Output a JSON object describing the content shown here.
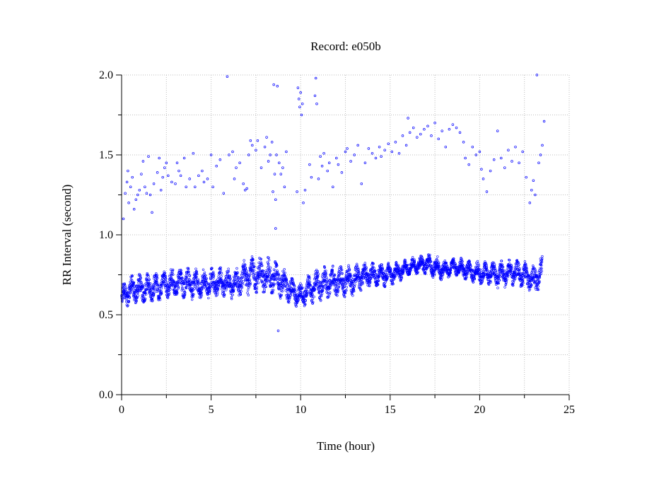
{
  "chart_data": {
    "type": "scatter",
    "title": "Record:  e050b",
    "xlabel": "Time (hour)",
    "ylabel": "RR Interval (second)",
    "xlim": [
      0,
      25
    ],
    "ylim": [
      0.0,
      2.0
    ],
    "x_ticks": [
      "0",
      "5",
      "10",
      "15",
      "20",
      "25"
    ],
    "y_ticks": [
      "0.0",
      "0.5",
      "1.0",
      "1.5",
      "2.0"
    ],
    "grid": true,
    "marker_color": "#0000ff",
    "baseline_band": [
      [
        0.0,
        0.6,
        0.08
      ],
      [
        0.5,
        0.66,
        0.08
      ],
      [
        1.0,
        0.66,
        0.09
      ],
      [
        1.5,
        0.67,
        0.09
      ],
      [
        2.0,
        0.67,
        0.09
      ],
      [
        2.5,
        0.69,
        0.09
      ],
      [
        3.0,
        0.7,
        0.09
      ],
      [
        3.5,
        0.7,
        0.09
      ],
      [
        4.0,
        0.69,
        0.09
      ],
      [
        4.5,
        0.69,
        0.09
      ],
      [
        5.0,
        0.7,
        0.09
      ],
      [
        5.5,
        0.7,
        0.09
      ],
      [
        6.0,
        0.69,
        0.09
      ],
      [
        6.5,
        0.7,
        0.09
      ],
      [
        7.0,
        0.74,
        0.11
      ],
      [
        7.5,
        0.75,
        0.11
      ],
      [
        8.0,
        0.74,
        0.11
      ],
      [
        8.5,
        0.74,
        0.11
      ],
      [
        9.0,
        0.7,
        0.1
      ],
      [
        9.5,
        0.65,
        0.08
      ],
      [
        10.0,
        0.62,
        0.07
      ],
      [
        10.5,
        0.66,
        0.09
      ],
      [
        11.0,
        0.69,
        0.1
      ],
      [
        11.5,
        0.7,
        0.1
      ],
      [
        12.0,
        0.71,
        0.09
      ],
      [
        12.5,
        0.71,
        0.09
      ],
      [
        13.0,
        0.72,
        0.09
      ],
      [
        13.5,
        0.74,
        0.08
      ],
      [
        14.0,
        0.75,
        0.07
      ],
      [
        14.5,
        0.75,
        0.07
      ],
      [
        15.0,
        0.75,
        0.07
      ],
      [
        15.5,
        0.77,
        0.06
      ],
      [
        16.0,
        0.8,
        0.05
      ],
      [
        16.5,
        0.81,
        0.05
      ],
      [
        17.0,
        0.82,
        0.06
      ],
      [
        17.5,
        0.8,
        0.07
      ],
      [
        18.0,
        0.78,
        0.06
      ],
      [
        18.5,
        0.8,
        0.05
      ],
      [
        19.0,
        0.79,
        0.06
      ],
      [
        19.5,
        0.77,
        0.06
      ],
      [
        20.0,
        0.76,
        0.07
      ],
      [
        20.5,
        0.76,
        0.07
      ],
      [
        21.0,
        0.75,
        0.08
      ],
      [
        21.5,
        0.76,
        0.08
      ],
      [
        22.0,
        0.76,
        0.08
      ],
      [
        22.5,
        0.75,
        0.08
      ],
      [
        23.0,
        0.71,
        0.09
      ],
      [
        23.5,
        0.77,
        0.1
      ]
    ],
    "outliers": [
      [
        0.1,
        1.1
      ],
      [
        0.2,
        1.26
      ],
      [
        0.3,
        1.33
      ],
      [
        0.35,
        1.4
      ],
      [
        0.4,
        1.2
      ],
      [
        0.5,
        1.3
      ],
      [
        0.6,
        1.36
      ],
      [
        0.7,
        1.16
      ],
      [
        0.8,
        1.22
      ],
      [
        0.9,
        1.25
      ],
      [
        1.0,
        1.28
      ],
      [
        1.1,
        1.38
      ],
      [
        1.2,
        1.46
      ],
      [
        1.3,
        1.3
      ],
      [
        1.4,
        1.26
      ],
      [
        1.5,
        1.49
      ],
      [
        1.6,
        1.25
      ],
      [
        1.7,
        1.14
      ],
      [
        1.8,
        1.32
      ],
      [
        2.0,
        1.39
      ],
      [
        2.1,
        1.48
      ],
      [
        2.2,
        1.28
      ],
      [
        2.3,
        1.36
      ],
      [
        2.4,
        1.42
      ],
      [
        2.5,
        1.45
      ],
      [
        2.6,
        1.37
      ],
      [
        2.8,
        1.33
      ],
      [
        3.0,
        1.32
      ],
      [
        3.1,
        1.45
      ],
      [
        3.2,
        1.4
      ],
      [
        3.3,
        1.37
      ],
      [
        3.5,
        1.48
      ],
      [
        3.6,
        1.3
      ],
      [
        3.8,
        1.35
      ],
      [
        4.0,
        1.51
      ],
      [
        4.1,
        1.3
      ],
      [
        4.3,
        1.37
      ],
      [
        4.5,
        1.4
      ],
      [
        4.6,
        1.33
      ],
      [
        4.8,
        1.35
      ],
      [
        5.0,
        1.5
      ],
      [
        5.1,
        1.3
      ],
      [
        5.3,
        1.43
      ],
      [
        5.5,
        1.47
      ],
      [
        5.7,
        1.26
      ],
      [
        5.9,
        1.99
      ],
      [
        6.0,
        1.5
      ],
      [
        6.2,
        1.52
      ],
      [
        6.3,
        1.35
      ],
      [
        6.4,
        1.42
      ],
      [
        6.6,
        1.45
      ],
      [
        6.8,
        1.32
      ],
      [
        6.9,
        1.28
      ],
      [
        7.0,
        1.29
      ],
      [
        7.1,
        1.5
      ],
      [
        7.2,
        1.59
      ],
      [
        7.3,
        1.56
      ],
      [
        7.5,
        1.53
      ],
      [
        7.6,
        1.59
      ],
      [
        7.8,
        1.42
      ],
      [
        8.0,
        1.55
      ],
      [
        8.1,
        1.61
      ],
      [
        8.2,
        1.46
      ],
      [
        8.3,
        1.5
      ],
      [
        8.4,
        1.58
      ],
      [
        8.45,
        1.27
      ],
      [
        8.5,
        1.94
      ],
      [
        8.55,
        1.38
      ],
      [
        8.6,
        1.22
      ],
      [
        8.6,
        1.04
      ],
      [
        8.65,
        1.5
      ],
      [
        8.7,
        1.93
      ],
      [
        8.75,
        0.4
      ],
      [
        8.8,
        1.45
      ],
      [
        8.9,
        1.38
      ],
      [
        9.0,
        1.42
      ],
      [
        9.1,
        1.3
      ],
      [
        9.2,
        1.52
      ],
      [
        9.8,
        1.27
      ],
      [
        9.85,
        1.92
      ],
      [
        9.9,
        1.85
      ],
      [
        9.95,
        1.8
      ],
      [
        10.0,
        1.89
      ],
      [
        10.05,
        1.75
      ],
      [
        10.1,
        1.82
      ],
      [
        10.15,
        1.2
      ],
      [
        10.25,
        1.28
      ],
      [
        10.5,
        1.44
      ],
      [
        10.6,
        1.36
      ],
      [
        10.8,
        1.87
      ],
      [
        10.85,
        1.98
      ],
      [
        10.9,
        1.82
      ],
      [
        11.0,
        1.35
      ],
      [
        11.1,
        1.49
      ],
      [
        11.2,
        1.43
      ],
      [
        11.3,
        1.51
      ],
      [
        11.5,
        1.4
      ],
      [
        11.6,
        1.45
      ],
      [
        11.8,
        1.3
      ],
      [
        12.0,
        1.48
      ],
      [
        12.1,
        1.44
      ],
      [
        12.3,
        1.39
      ],
      [
        12.5,
        1.52
      ],
      [
        12.6,
        1.54
      ],
      [
        12.8,
        1.46
      ],
      [
        13.0,
        1.5
      ],
      [
        13.2,
        1.56
      ],
      [
        13.4,
        1.32
      ],
      [
        13.6,
        1.45
      ],
      [
        13.8,
        1.54
      ],
      [
        14.0,
        1.51
      ],
      [
        14.2,
        1.48
      ],
      [
        14.4,
        1.55
      ],
      [
        14.5,
        1.49
      ],
      [
        14.7,
        1.53
      ],
      [
        14.9,
        1.57
      ],
      [
        15.1,
        1.52
      ],
      [
        15.3,
        1.58
      ],
      [
        15.5,
        1.51
      ],
      [
        15.7,
        1.62
      ],
      [
        15.9,
        1.56
      ],
      [
        16.0,
        1.73
      ],
      [
        16.1,
        1.64
      ],
      [
        16.3,
        1.67
      ],
      [
        16.5,
        1.61
      ],
      [
        16.7,
        1.63
      ],
      [
        16.9,
        1.66
      ],
      [
        17.1,
        1.68
      ],
      [
        17.3,
        1.62
      ],
      [
        17.5,
        1.7
      ],
      [
        17.7,
        1.6
      ],
      [
        17.9,
        1.65
      ],
      [
        18.1,
        1.55
      ],
      [
        18.3,
        1.66
      ],
      [
        18.5,
        1.69
      ],
      [
        18.7,
        1.67
      ],
      [
        18.9,
        1.64
      ],
      [
        19.1,
        1.58
      ],
      [
        19.2,
        1.48
      ],
      [
        19.4,
        1.44
      ],
      [
        19.6,
        1.55
      ],
      [
        19.8,
        1.5
      ],
      [
        20.0,
        1.52
      ],
      [
        20.1,
        1.41
      ],
      [
        20.2,
        1.35
      ],
      [
        20.4,
        1.27
      ],
      [
        20.6,
        1.4
      ],
      [
        20.8,
        1.47
      ],
      [
        21.0,
        1.65
      ],
      [
        21.2,
        1.48
      ],
      [
        21.4,
        1.42
      ],
      [
        21.6,
        1.53
      ],
      [
        21.8,
        1.46
      ],
      [
        22.0,
        1.55
      ],
      [
        22.2,
        1.45
      ],
      [
        22.4,
        1.52
      ],
      [
        22.6,
        1.36
      ],
      [
        22.8,
        1.2
      ],
      [
        22.9,
        1.28
      ],
      [
        23.0,
        1.34
      ],
      [
        23.1,
        1.25
      ],
      [
        23.2,
        2.0
      ],
      [
        23.3,
        1.45
      ],
      [
        23.4,
        1.5
      ],
      [
        23.5,
        1.56
      ],
      [
        23.6,
        1.71
      ]
    ]
  }
}
